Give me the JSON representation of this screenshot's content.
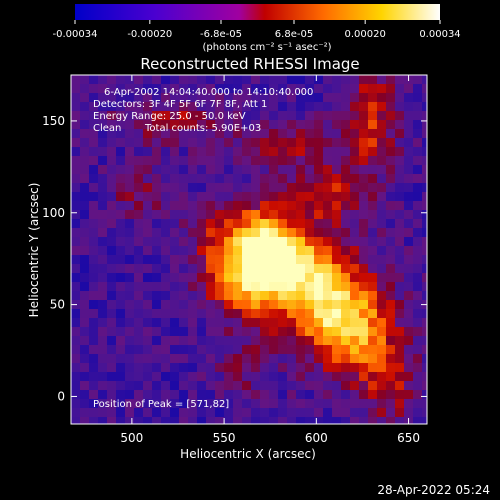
{
  "colorbar": {
    "ticks": [
      "-0.00034",
      "-0.00020",
      "-6.8e-05",
      "6.8e-05",
      "0.00020",
      "0.00034"
    ],
    "units": "(photons cm⁻² s⁻¹ asec⁻²)",
    "colors": [
      "#0000c8",
      "#6a00c0",
      "#c00000",
      "#ff7a00",
      "#ffe84a",
      "#ffffff"
    ]
  },
  "image": {
    "title": "Reconstructed RHESSI Image",
    "time_range": "6-Apr-2002 14:04:40.000 to 14:10:40.000",
    "detectors": "Detectors: 3F 4F 5F 6F 7F 8F, Att 1",
    "energy_range": "Energy Range: 25.0 - 50.0 keV",
    "algorithm": "Clean",
    "total_counts": "Total counts: 5.90E+03",
    "peak_position": "Position of Peak = [571,82]"
  },
  "chart_data": {
    "type": "heatmap",
    "title": "Reconstructed RHESSI Image",
    "xlabel": "Heliocentric X (arcsec)",
    "ylabel": "Heliocentric Y (arcsec)",
    "xlim": [
      467,
      660
    ],
    "ylim": [
      -15,
      175
    ],
    "x_ticks": [
      500,
      550,
      600,
      650
    ],
    "y_ticks": [
      0,
      50,
      100,
      150
    ],
    "peak": [
      571,
      82
    ]
  },
  "footer": {
    "timestamp": "28-Apr-2022 05:24"
  }
}
